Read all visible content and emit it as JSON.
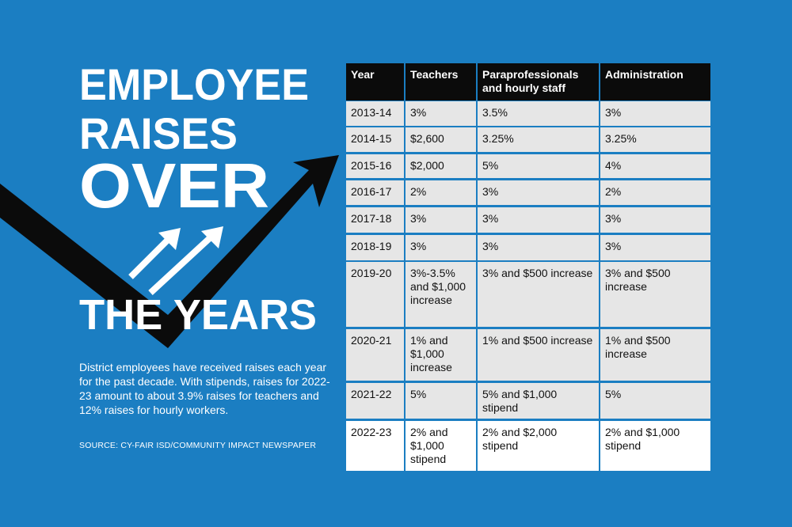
{
  "title_lines": [
    "EMPLOYEE",
    "RAISES",
    "OVER",
    "THE YEARS"
  ],
  "description": "District employees have received raises each year for the past decade. With stipends, raises for 2022-23 amount to about 3.9% raises for teachers and 12% raises for hourly workers.",
  "source": "SOURCE: CY-FAIR ISD/COMMUNITY IMPACT NEWSPAPER",
  "table": {
    "header": [
      "Year",
      "Teachers",
      "Paraprofessionals and hourly staff",
      "Administration"
    ],
    "rows": [
      [
        "2013-14",
        "3%",
        "3.5%",
        "3%"
      ],
      [
        "2014-15",
        "$2,600",
        "3.25%",
        "3.25%"
      ],
      [
        "2015-16",
        "$2,000",
        "5%",
        "4%"
      ],
      [
        "2016-17",
        "2%",
        "3%",
        "2%"
      ],
      [
        "2017-18",
        "3%",
        "3%",
        "3%"
      ],
      [
        "2018-19",
        "3%",
        "3%",
        "3%"
      ],
      [
        "2019-20",
        "3%-3.5% and $1,000 increase",
        "3% and $500 increase",
        "3% and $500 increase"
      ],
      [
        "2020-21",
        "1% and $1,000 increase",
        "1% and $500 increase",
        "1% and $500 increase"
      ],
      [
        "2021-22",
        "5%",
        "5% and $1,000 stipend",
        "5%"
      ],
      [
        "2022-23",
        "2% and $1,000 stipend",
        "2% and $2,000 stipend",
        "2% and $1,000 stipend"
      ]
    ]
  }
}
